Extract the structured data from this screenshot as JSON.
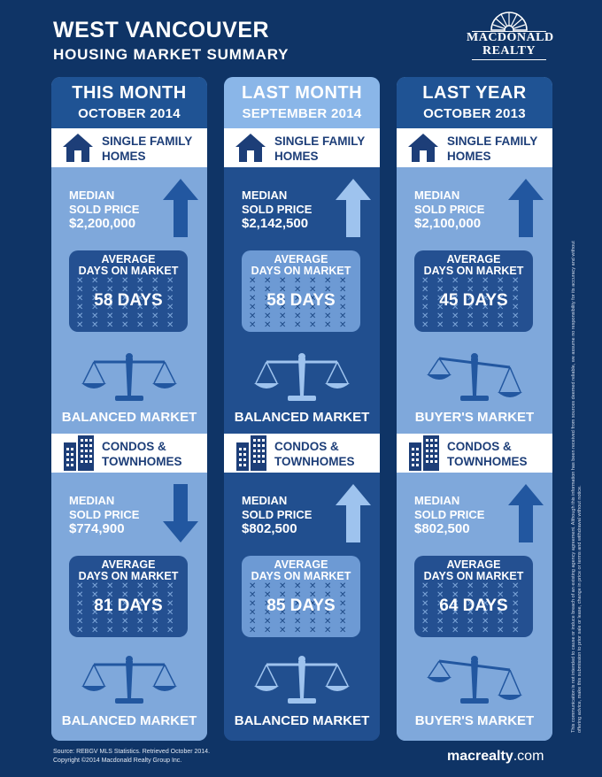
{
  "header": {
    "title": "WEST VANCOUVER",
    "subtitle": "HOUSING MARKET SUMMARY",
    "logo_line1": "MACDONALD",
    "logo_line2": "REALTY"
  },
  "colors": {
    "background": "#0f3466",
    "this_month_header": "#1f5394",
    "light_panel": "#7fa8db",
    "dark_panel": "#214f8f",
    "last_month_header": "#8ab6e8",
    "dom_light": "#245091",
    "dom_dark": "#6d9ad4"
  },
  "labels": {
    "single_family_l1": "SINGLE FAMILY",
    "single_family_l2": "HOMES",
    "condos_l1": "CONDOS &",
    "condos_l2": "TOWNHOMES",
    "median_l1": "MEDIAN",
    "median_l2": "SOLD PRICE",
    "avg_l1": "AVERAGE",
    "avg_l2": "DAYS ON MARKET"
  },
  "columns": [
    {
      "heading": "THIS MONTH",
      "period": "OCTOBER 2014",
      "single_family": {
        "median_price": "$2,200,000",
        "price_trend": "up",
        "avg_days": "58 DAYS",
        "market": "BALANCED MARKET",
        "scale": "balanced"
      },
      "condos": {
        "median_price": "$774,900",
        "price_trend": "down",
        "avg_days": "81 DAYS",
        "market": "BALANCED MARKET",
        "scale": "balanced"
      }
    },
    {
      "heading": "LAST MONTH",
      "period": "SEPTEMBER 2014",
      "single_family": {
        "median_price": "$2,142,500",
        "price_trend": "up",
        "avg_days": "58 DAYS",
        "market": "BALANCED MARKET",
        "scale": "balanced"
      },
      "condos": {
        "median_price": "$802,500",
        "price_trend": "up",
        "avg_days": "85 DAYS",
        "market": "BALANCED MARKET",
        "scale": "balanced"
      }
    },
    {
      "heading": "LAST YEAR",
      "period": "OCTOBER 2013",
      "single_family": {
        "median_price": "$2,100,000",
        "price_trend": "up",
        "avg_days": "45 DAYS",
        "market": "BUYER'S MARKET",
        "scale": "tilted"
      },
      "condos": {
        "median_price": "$802,500",
        "price_trend": "up",
        "avg_days": "64 DAYS",
        "market": "BUYER'S MARKET",
        "scale": "tilted"
      }
    }
  ],
  "footer": {
    "source": "Source:  REBGV MLS Statistics. Retrieved October 2014.",
    "copyright": "Copyright ©2014 Macdonald Realty Group Inc.",
    "website": "macrealty",
    "website_tld": ".com",
    "disclaimer": "This communication is not intended to cause or induce breach of an existing agency agreement.  Although this information has been received from sources deemed reliable, we assume no responsibility for its accuracy and without offering advice, make this submission to prior sale or lease, change in price or terms and withdrawal without notice."
  }
}
